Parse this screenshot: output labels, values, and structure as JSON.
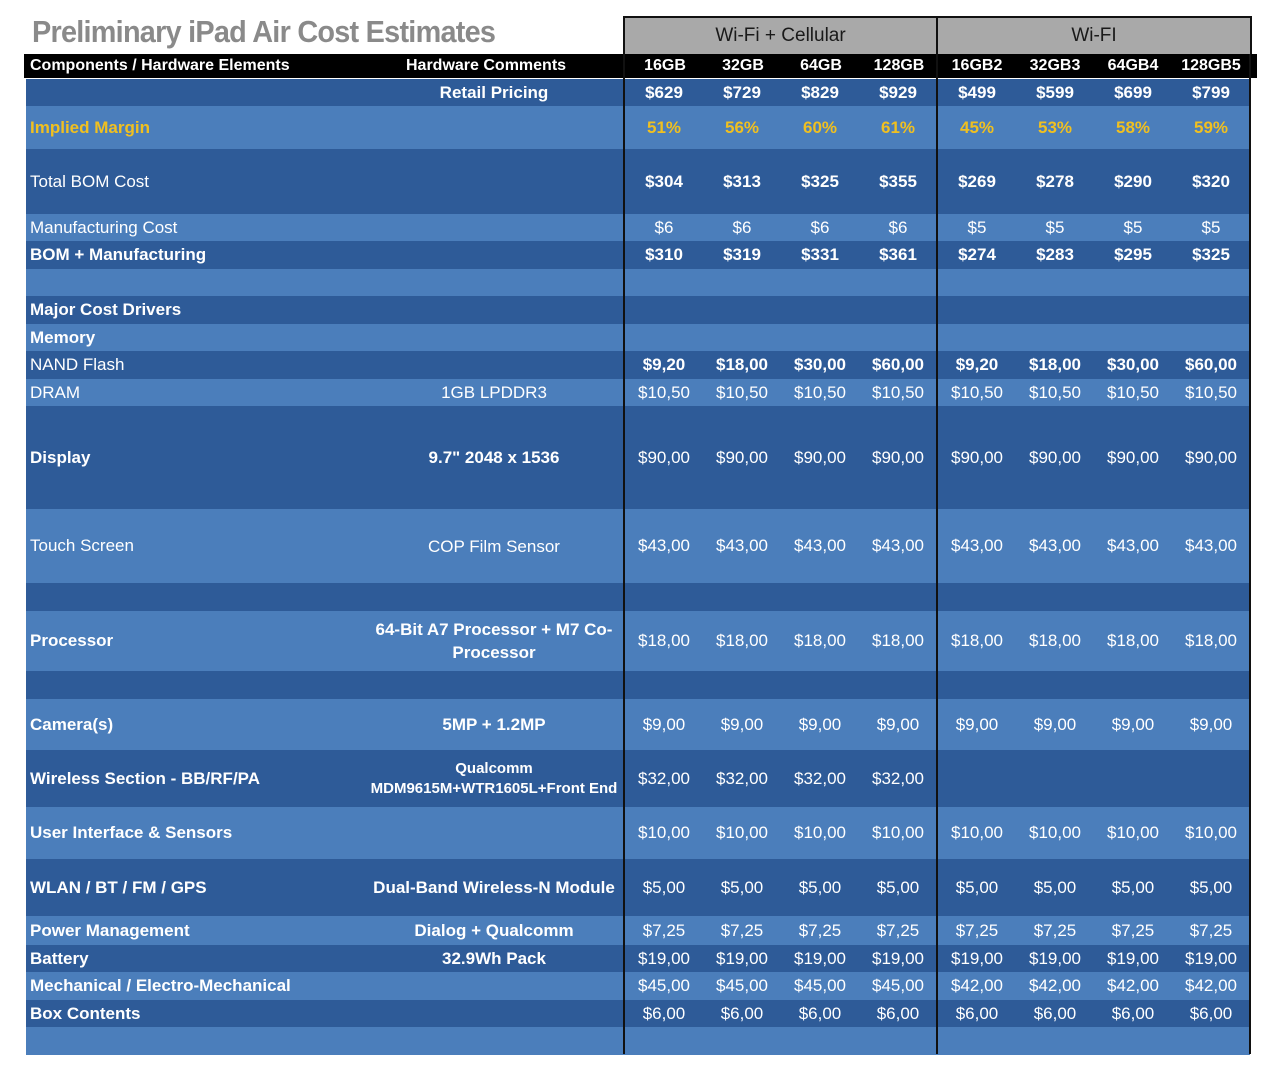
{
  "title": "Preliminary iPad Air Cost Estimates",
  "groups": {
    "cellular": "Wi-Fi + Cellular",
    "wifi": "Wi-FI"
  },
  "header": {
    "components": "Components / Hardware Elements",
    "comments": "Hardware Comments",
    "columns": [
      "16GB",
      "32GB",
      "64GB",
      "128GB",
      "16GB2",
      "32GB3",
      "64GB4",
      "128GB5"
    ]
  },
  "colors": {
    "dark": "#2e5b98",
    "light": "#4b7ebb",
    "margin_text": "#f0c020",
    "header": "#000000",
    "group_header": "#a9a9a9"
  },
  "rows": [
    {
      "label": "",
      "note": "Retail Pricing",
      "values": [
        "$629",
        "$729",
        "$829",
        "$929",
        "$499",
        "$599",
        "$699",
        "$799"
      ],
      "shade": "dark",
      "h": 27,
      "bold_label": true,
      "bold_values": true
    },
    {
      "label": "Implied Margin",
      "note": "",
      "values": [
        "51%",
        "56%",
        "60%",
        "61%",
        "45%",
        "53%",
        "58%",
        "59%"
      ],
      "shade": "light",
      "h": 43,
      "bold_label": true,
      "bold_values": true,
      "accent": true
    },
    {
      "label": "Total BOM Cost",
      "note": "",
      "values": [
        "$304",
        "$313",
        "$325",
        "$355",
        "$269",
        "$278",
        "$290",
        "$320"
      ],
      "shade": "dark",
      "h": 65,
      "bold_label": false,
      "bold_values": true
    },
    {
      "label": "Manufacturing Cost",
      "note": "",
      "values": [
        "$6",
        "$6",
        "$6",
        "$6",
        "$5",
        "$5",
        "$5",
        "$5"
      ],
      "shade": "light",
      "h": 27,
      "bold_label": false,
      "bold_values": false
    },
    {
      "label": "BOM + Manufacturing",
      "note": "",
      "values": [
        "$310",
        "$319",
        "$331",
        "$361",
        "$274",
        "$283",
        "$295",
        "$325"
      ],
      "shade": "dark",
      "h": 28,
      "bold_label": true,
      "bold_values": true
    },
    {
      "label": "",
      "note": "",
      "values": [
        "",
        "",
        "",
        "",
        "",
        "",
        "",
        ""
      ],
      "shade": "light",
      "h": 27
    },
    {
      "label": "Major Cost Drivers",
      "note": "",
      "values": [
        "",
        "",
        "",
        "",
        "",
        "",
        "",
        ""
      ],
      "shade": "dark",
      "h": 28,
      "bold_label": true
    },
    {
      "label": "Memory",
      "note": "",
      "values": [
        "",
        "",
        "",
        "",
        "",
        "",
        "",
        ""
      ],
      "shade": "light",
      "h": 27,
      "bold_label": true
    },
    {
      "label": "NAND Flash",
      "note": "",
      "values": [
        "$9,20",
        "$18,00",
        "$30,00",
        "$60,00",
        "$9,20",
        "$18,00",
        "$30,00",
        "$60,00"
      ],
      "shade": "dark",
      "h": 28,
      "bold_label": false,
      "bold_values": true
    },
    {
      "label": "DRAM",
      "note": "1GB LPDDR3",
      "values": [
        "$10,50",
        "$10,50",
        "$10,50",
        "$10,50",
        "$10,50",
        "$10,50",
        "$10,50",
        "$10,50"
      ],
      "shade": "light",
      "h": 27,
      "bold_label": false,
      "bold_values": false
    },
    {
      "label": "Display",
      "note": "9.7\" 2048 x 1536",
      "values": [
        "$90,00",
        "$90,00",
        "$90,00",
        "$90,00",
        "$90,00",
        "$90,00",
        "$90,00",
        "$90,00"
      ],
      "shade": "dark",
      "h": 103,
      "bold_label": true,
      "bold_values": false,
      "bold_note": true
    },
    {
      "label": "Touch Screen",
      "note": "COP Film Sensor",
      "values": [
        "$43,00",
        "$43,00",
        "$43,00",
        "$43,00",
        "$43,00",
        "$43,00",
        "$43,00",
        "$43,00"
      ],
      "shade": "light",
      "h": 74,
      "bold_label": false,
      "bold_values": false
    },
    {
      "label": "",
      "note": "",
      "values": [
        "",
        "",
        "",
        "",
        "",
        "",
        "",
        ""
      ],
      "shade": "dark",
      "h": 28
    },
    {
      "label": "Processor",
      "note": "64-Bit A7 Processor + M7 Co-Processor",
      "values": [
        "$18,00",
        "$18,00",
        "$18,00",
        "$18,00",
        "$18,00",
        "$18,00",
        "$18,00",
        "$18,00"
      ],
      "shade": "light",
      "h": 60,
      "bold_label": true,
      "bold_values": false,
      "bold_note": true
    },
    {
      "label": "",
      "note": "",
      "values": [
        "",
        "",
        "",
        "",
        "",
        "",
        "",
        ""
      ],
      "shade": "dark",
      "h": 28
    },
    {
      "label": "Camera(s)",
      "note": "5MP + 1.2MP",
      "values": [
        "$9,00",
        "$9,00",
        "$9,00",
        "$9,00",
        "$9,00",
        "$9,00",
        "$9,00",
        "$9,00"
      ],
      "shade": "light",
      "h": 51,
      "bold_label": true,
      "bold_values": false,
      "bold_note": true
    },
    {
      "label": "Wireless Section - BB/RF/PA",
      "note": "Qualcomm MDM9615M+WTR1605L+Front End",
      "values": [
        "$32,00",
        "$32,00",
        "$32,00",
        "$32,00",
        "",
        "",
        "",
        ""
      ],
      "shade": "dark",
      "h": 57,
      "bold_label": true,
      "bold_values": false,
      "bold_note": true,
      "small_note": true
    },
    {
      "label": "User Interface & Sensors",
      "note": "",
      "values": [
        "$10,00",
        "$10,00",
        "$10,00",
        "$10,00",
        "$10,00",
        "$10,00",
        "$10,00",
        "$10,00"
      ],
      "shade": "light",
      "h": 52,
      "bold_label": true,
      "bold_values": false
    },
    {
      "label": "WLAN / BT / FM / GPS",
      "note": "Dual-Band Wireless-N Module",
      "values": [
        "$5,00",
        "$5,00",
        "$5,00",
        "$5,00",
        "$5,00",
        "$5,00",
        "$5,00",
        "$5,00"
      ],
      "shade": "dark",
      "h": 57,
      "bold_label": true,
      "bold_values": false,
      "bold_note": true
    },
    {
      "label": "Power Management",
      "note": "Dialog + Qualcomm",
      "values": [
        "$7,25",
        "$7,25",
        "$7,25",
        "$7,25",
        "$7,25",
        "$7,25",
        "$7,25",
        "$7,25"
      ],
      "shade": "light",
      "h": 29,
      "bold_label": true,
      "bold_values": false,
      "bold_note": true
    },
    {
      "label": "Battery",
      "note": "32.9Wh Pack",
      "values": [
        "$19,00",
        "$19,00",
        "$19,00",
        "$19,00",
        "$19,00",
        "$19,00",
        "$19,00",
        "$19,00"
      ],
      "shade": "dark",
      "h": 27,
      "bold_label": true,
      "bold_values": false,
      "bold_note": true
    },
    {
      "label": "Mechanical / Electro-Mechanical",
      "note": "",
      "values": [
        "$45,00",
        "$45,00",
        "$45,00",
        "$45,00",
        "$42,00",
        "$42,00",
        "$42,00",
        "$42,00"
      ],
      "shade": "light",
      "h": 28,
      "bold_label": true,
      "bold_values": false
    },
    {
      "label": "Box Contents",
      "note": "",
      "values": [
        "$6,00",
        "$6,00",
        "$6,00",
        "$6,00",
        "$6,00",
        "$6,00",
        "$6,00",
        "$6,00"
      ],
      "shade": "dark",
      "h": 27,
      "bold_label": true,
      "bold_values": false
    },
    {
      "label": "",
      "note": "",
      "values": [
        "",
        "",
        "",
        "",
        "",
        "",
        "",
        ""
      ],
      "shade": "light",
      "h": 28
    }
  ]
}
